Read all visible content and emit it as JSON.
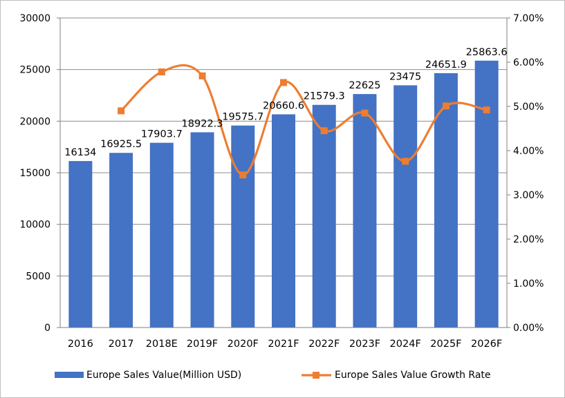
{
  "chart_data": {
    "type": "bar",
    "categories": [
      "2016",
      "2017",
      "2018E",
      "2019F",
      "2020F",
      "2021F",
      "2022F",
      "2023F",
      "2024F",
      "2025F",
      "2026F"
    ],
    "series": [
      {
        "name": "Europe Sales Value(Million USD)",
        "type": "bar",
        "axis": "left",
        "color": "#4472c4",
        "values": [
          16134,
          16925.5,
          17903.7,
          18922.3,
          19575.7,
          20660.6,
          21579.3,
          22625,
          23475,
          24651.9,
          25863.6
        ],
        "labels": [
          "16134",
          "16925.5",
          "17903.7",
          "18922.3",
          "19575.7",
          "20660.6",
          "21579.3",
          "22625",
          "23475",
          "24651.9",
          "25863.6"
        ]
      },
      {
        "name": "Europe Sales Value Growth Rate",
        "type": "line",
        "axis": "right",
        "smooth": true,
        "color": "#ed7d31",
        "values": [
          null,
          4.9,
          5.78,
          5.69,
          3.45,
          5.54,
          4.45,
          4.85,
          3.76,
          5.01,
          4.92
        ]
      }
    ],
    "y_left": {
      "min": 0,
      "max": 30000,
      "step": 5000,
      "tick_labels": [
        "0",
        "5000",
        "10000",
        "15000",
        "20000",
        "25000",
        "30000"
      ]
    },
    "y_right": {
      "min": 0,
      "max": 7,
      "step": 1,
      "unit": "%",
      "tick_labels": [
        "0.00%",
        "1.00%",
        "2.00%",
        "3.00%",
        "4.00%",
        "5.00%",
        "6.00%",
        "7.00%"
      ]
    },
    "grid": true,
    "legend_position": "bottom"
  }
}
